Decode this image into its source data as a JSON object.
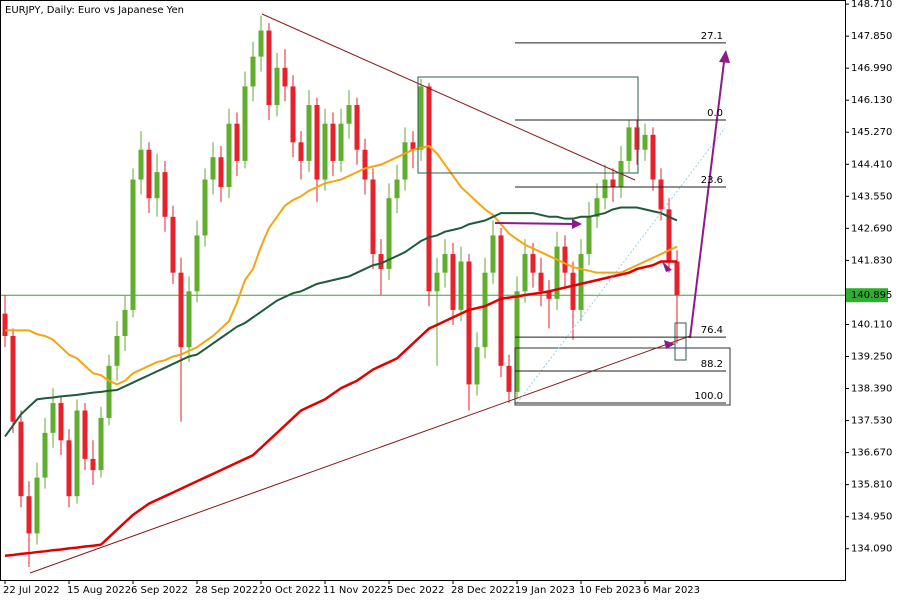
{
  "chart_data": {
    "type": "candlestick",
    "title": "EURJPY, Daily:  Euro vs Japanese Yen",
    "categories": [
      "22 Jul 2022",
      null,
      null,
      null,
      null,
      null,
      null,
      null,
      "15 Aug 2022",
      null,
      null,
      null,
      null,
      null,
      null,
      null,
      "6 Sep 2022",
      null,
      null,
      null,
      null,
      null,
      null,
      null,
      "28 Sep 2022",
      null,
      null,
      null,
      null,
      null,
      null,
      null,
      "20 Oct 2022",
      null,
      null,
      null,
      null,
      null,
      null,
      null,
      "11 Nov 2022",
      null,
      null,
      null,
      null,
      null,
      null,
      null,
      "5 Dec 2022",
      null,
      null,
      null,
      null,
      null,
      null,
      null,
      "28 Dec 2022",
      null,
      null,
      null,
      null,
      null,
      null,
      null,
      "19 Jan 2023",
      null,
      null,
      null,
      null,
      null,
      null,
      null,
      "10 Feb 2023",
      null,
      null,
      null,
      null,
      null,
      null,
      null,
      "6 Mar 2023",
      null,
      null,
      null,
      null
    ],
    "ohlc": [
      [
        140.4,
        140.9,
        139.5,
        139.8
      ],
      [
        139.8,
        140.0,
        137.2,
        137.5
      ],
      [
        137.5,
        137.8,
        135.2,
        135.5
      ],
      [
        135.5,
        135.9,
        133.6,
        134.5
      ],
      [
        134.5,
        136.4,
        134.2,
        136.0
      ],
      [
        136.0,
        137.6,
        135.7,
        137.2
      ],
      [
        137.2,
        138.4,
        136.8,
        138.0
      ],
      [
        138.0,
        138.2,
        136.6,
        137.0
      ],
      [
        137.0,
        137.3,
        135.2,
        135.5
      ],
      [
        135.5,
        138.1,
        135.3,
        137.8
      ],
      [
        137.8,
        138.0,
        136.2,
        136.5
      ],
      [
        136.5,
        137.0,
        135.8,
        136.2
      ],
      [
        136.2,
        137.9,
        136.0,
        137.6
      ],
      [
        137.6,
        139.3,
        137.4,
        139.0
      ],
      [
        139.0,
        140.2,
        138.6,
        139.8
      ],
      [
        139.8,
        140.9,
        139.4,
        140.5
      ],
      [
        140.5,
        144.3,
        140.3,
        144.0
      ],
      [
        144.0,
        145.3,
        143.6,
        144.8
      ],
      [
        144.8,
        145.0,
        143.1,
        143.5
      ],
      [
        143.5,
        144.7,
        143.0,
        144.2
      ],
      [
        144.2,
        144.5,
        142.6,
        143.0
      ],
      [
        143.0,
        143.3,
        141.2,
        141.5
      ],
      [
        141.5,
        141.9,
        137.5,
        139.5
      ],
      [
        139.5,
        141.4,
        139.1,
        141.0
      ],
      [
        141.0,
        142.9,
        140.7,
        142.5
      ],
      [
        142.5,
        144.3,
        142.2,
        144.0
      ],
      [
        144.0,
        145.0,
        143.6,
        144.6
      ],
      [
        144.6,
        144.9,
        143.4,
        143.8
      ],
      [
        143.8,
        145.9,
        143.5,
        145.5
      ],
      [
        145.5,
        145.8,
        144.1,
        144.5
      ],
      [
        144.5,
        146.9,
        144.3,
        146.5
      ],
      [
        146.5,
        147.7,
        146.1,
        147.3
      ],
      [
        147.3,
        148.4,
        146.9,
        148.0
      ],
      [
        148.0,
        148.2,
        145.6,
        146.0
      ],
      [
        146.0,
        147.4,
        145.7,
        147.0
      ],
      [
        147.0,
        147.5,
        146.1,
        146.5
      ],
      [
        146.5,
        146.8,
        144.6,
        145.0
      ],
      [
        145.0,
        145.3,
        144.0,
        144.5
      ],
      [
        144.5,
        146.4,
        144.2,
        146.0
      ],
      [
        146.0,
        146.2,
        143.4,
        144.0
      ],
      [
        144.0,
        145.9,
        143.7,
        145.5
      ],
      [
        145.5,
        145.8,
        144.1,
        144.5
      ],
      [
        144.5,
        145.9,
        144.2,
        145.5
      ],
      [
        145.5,
        146.4,
        145.1,
        146.0
      ],
      [
        146.0,
        146.2,
        144.4,
        144.8
      ],
      [
        144.8,
        145.1,
        143.6,
        144.0
      ],
      [
        144.0,
        144.3,
        141.6,
        142.0
      ],
      [
        142.0,
        142.4,
        140.9,
        141.6
      ],
      [
        141.6,
        143.9,
        141.3,
        143.5
      ],
      [
        143.5,
        144.4,
        143.1,
        144.0
      ],
      [
        144.0,
        145.4,
        143.7,
        145.0
      ],
      [
        145.0,
        145.3,
        144.3,
        144.8
      ],
      [
        144.8,
        146.7,
        144.5,
        146.5
      ],
      [
        146.5,
        146.6,
        140.6,
        141.0
      ],
      [
        141.0,
        141.9,
        139.0,
        141.5
      ],
      [
        141.5,
        142.4,
        141.1,
        142.0
      ],
      [
        142.0,
        142.3,
        140.1,
        140.5
      ],
      [
        140.5,
        142.2,
        140.2,
        141.8
      ],
      [
        141.8,
        142.0,
        137.8,
        138.5
      ],
      [
        138.5,
        139.9,
        138.2,
        139.5
      ],
      [
        139.5,
        141.9,
        139.2,
        141.5
      ],
      [
        141.5,
        142.9,
        141.2,
        142.5
      ],
      [
        142.5,
        142.7,
        138.7,
        139.0
      ],
      [
        139.0,
        139.3,
        138.0,
        138.3
      ],
      [
        138.3,
        141.4,
        138.1,
        141.0
      ],
      [
        141.0,
        142.4,
        140.7,
        142.0
      ],
      [
        142.0,
        142.3,
        141.1,
        141.5
      ],
      [
        141.5,
        141.9,
        140.6,
        141.0
      ],
      [
        141.0,
        141.3,
        140.0,
        140.8
      ],
      [
        140.8,
        142.6,
        140.5,
        142.2
      ],
      [
        142.2,
        142.5,
        141.1,
        141.5
      ],
      [
        141.5,
        141.8,
        139.7,
        140.5
      ],
      [
        140.5,
        142.4,
        140.2,
        142.0
      ],
      [
        142.0,
        143.4,
        141.7,
        143.0
      ],
      [
        143.0,
        143.9,
        142.7,
        143.5
      ],
      [
        143.5,
        144.4,
        143.2,
        144.0
      ],
      [
        144.0,
        144.3,
        143.4,
        143.8
      ],
      [
        143.8,
        144.9,
        143.5,
        144.5
      ],
      [
        144.5,
        145.6,
        144.2,
        145.4
      ],
      [
        145.4,
        145.6,
        144.4,
        144.8
      ],
      [
        144.8,
        145.5,
        144.5,
        145.2
      ],
      [
        145.2,
        145.4,
        143.7,
        144.0
      ],
      [
        144.0,
        144.3,
        142.9,
        143.2
      ],
      [
        143.2,
        143.5,
        141.5,
        141.8
      ],
      [
        141.8,
        142.1,
        139.6,
        140.895
      ]
    ],
    "up_color": "#5fae2e",
    "down_color": "#e8222b",
    "series": [
      {
        "color": "#f5a511",
        "values": [
          139.95,
          139.95,
          139.95,
          139.95,
          139.85,
          139.8,
          139.7,
          139.5,
          139.3,
          139.2,
          139.0,
          138.8,
          138.75,
          138.6,
          138.5,
          138.6,
          138.8,
          138.9,
          139.0,
          139.1,
          139.15,
          139.25,
          139.3,
          139.4,
          139.5,
          139.65,
          139.8,
          140.0,
          140.2,
          140.7,
          141.3,
          141.6,
          142.2,
          142.7,
          143.0,
          143.3,
          143.45,
          143.55,
          143.7,
          143.8,
          143.9,
          143.95,
          144.0,
          144.1,
          144.2,
          144.3,
          144.35,
          144.4,
          144.5,
          144.6,
          144.7,
          144.8,
          144.85,
          144.9,
          144.7,
          144.4,
          144.1,
          143.8,
          143.6,
          143.4,
          143.2,
          143.05,
          142.8,
          142.55,
          142.4,
          142.25,
          142.15,
          142.05,
          141.95,
          141.85,
          141.75,
          141.65,
          141.6,
          141.55,
          141.5,
          141.5,
          141.5,
          141.5,
          141.6,
          141.7,
          141.8,
          141.9,
          142.0,
          142.1,
          142.2
        ]
      },
      {
        "color": "#1e5b3c",
        "values": [
          137.1,
          137.4,
          137.7,
          137.9,
          138.1,
          138.13,
          138.15,
          138.18,
          138.2,
          138.22,
          138.25,
          138.28,
          138.3,
          138.33,
          138.35,
          138.45,
          138.55,
          138.65,
          138.75,
          138.85,
          138.95,
          139.05,
          139.15,
          139.25,
          139.3,
          139.45,
          139.6,
          139.75,
          139.9,
          140.05,
          140.15,
          140.3,
          140.45,
          140.6,
          140.75,
          140.85,
          140.95,
          141.0,
          141.1,
          141.2,
          141.25,
          141.3,
          141.35,
          141.4,
          141.5,
          141.6,
          141.7,
          141.75,
          141.85,
          141.95,
          142.05,
          142.2,
          142.35,
          142.45,
          142.5,
          142.6,
          142.65,
          142.7,
          142.8,
          142.85,
          142.9,
          143.0,
          143.1,
          143.1,
          143.1,
          143.1,
          143.1,
          143.05,
          143.0,
          143.0,
          142.95,
          142.95,
          143.0,
          143.0,
          143.05,
          143.1,
          143.2,
          143.25,
          143.25,
          143.25,
          143.2,
          143.15,
          143.1,
          143.0,
          142.9
        ]
      },
      {
        "color": "#e00000",
        "values": [
          133.9,
          133.92,
          133.95,
          133.97,
          134.0,
          134.02,
          134.05,
          134.07,
          134.1,
          134.12,
          134.15,
          134.17,
          134.2,
          134.4,
          134.6,
          134.8,
          135.0,
          135.15,
          135.3,
          135.4,
          135.5,
          135.6,
          135.7,
          135.8,
          135.9,
          136.0,
          136.1,
          136.2,
          136.3,
          136.4,
          136.5,
          136.6,
          136.8,
          137.0,
          137.2,
          137.4,
          137.6,
          137.8,
          137.9,
          138.0,
          138.1,
          138.25,
          138.4,
          138.5,
          138.6,
          138.75,
          138.9,
          139.0,
          139.1,
          139.2,
          139.4,
          139.6,
          139.8,
          140.0,
          140.1,
          140.2,
          140.3,
          140.4,
          140.5,
          140.55,
          140.6,
          140.7,
          140.8,
          140.83,
          140.86,
          140.9,
          140.93,
          140.96,
          141.0,
          141.05,
          141.1,
          141.15,
          141.2,
          141.25,
          141.3,
          141.35,
          141.4,
          141.45,
          141.5,
          141.6,
          141.65,
          141.7,
          141.8,
          141.8,
          141.8
        ]
      }
    ],
    "ylim": [
      133.25,
      148.82
    ],
    "yticks": [
      {
        "value": 148.71,
        "label": "148.710"
      },
      {
        "value": 147.85,
        "label": "147.850"
      },
      {
        "value": 146.99,
        "label": "146.990"
      },
      {
        "value": 146.13,
        "label": "146.130"
      },
      {
        "value": 145.27,
        "label": "145.270"
      },
      {
        "value": 144.41,
        "label": "144.410"
      },
      {
        "value": 143.55,
        "label": "143.550"
      },
      {
        "value": 142.69,
        "label": "142.690"
      },
      {
        "value": 141.83,
        "label": "141.830"
      },
      {
        "value": 140.11,
        "label": "140.110"
      },
      {
        "value": 139.25,
        "label": "139.250"
      },
      {
        "value": 138.39,
        "label": "138.390"
      },
      {
        "value": 137.53,
        "label": "137.530"
      },
      {
        "value": 136.67,
        "label": "136.670"
      },
      {
        "value": 135.81,
        "label": "135.810"
      },
      {
        "value": 134.95,
        "label": "134.950"
      },
      {
        "value": 134.09,
        "label": "134.090"
      }
    ],
    "current_price": 140.895,
    "current_price_color": "#2fae2f",
    "fib_levels": [
      {
        "label": "27.1",
        "price": 147.67
      },
      {
        "label": "0.0",
        "price": 145.6
      },
      {
        "label": "23.6",
        "price": 143.8
      },
      {
        "label": "76.4",
        "price": 139.77
      },
      {
        "label": "88.2",
        "price": 138.86
      },
      {
        "label": "100.0",
        "price": 138.0
      }
    ]
  }
}
